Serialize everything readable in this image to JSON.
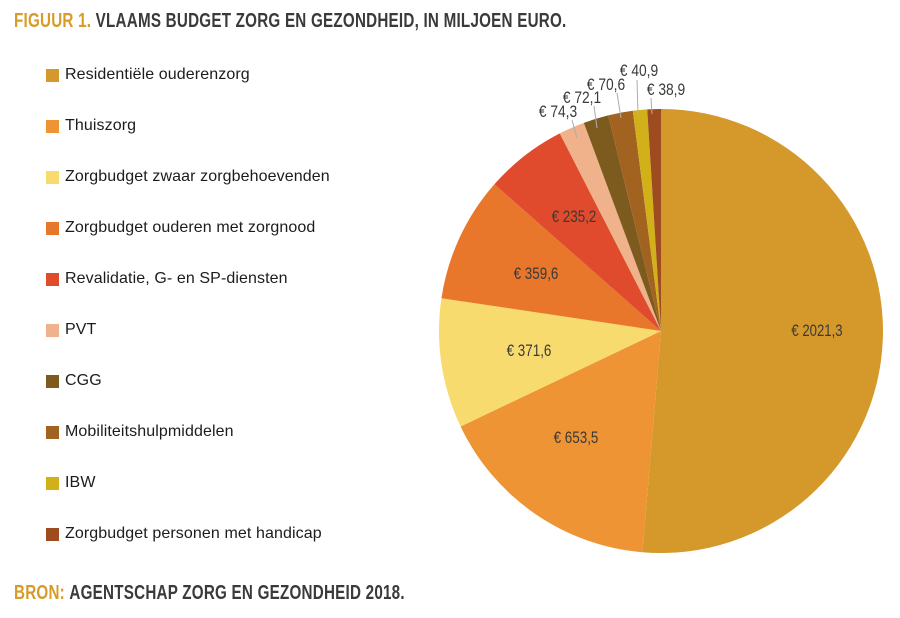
{
  "title": {
    "prefix": "FIGUUR 1.",
    "text": "VLAAMS BUDGET ZORG EN GEZONDHEID, IN MILJOEN EURO."
  },
  "source": {
    "prefix": "BRON:",
    "text": "AGENTSCHAP ZORG EN GEZONDHEID 2018."
  },
  "colors": {
    "accent": "#D89B28",
    "text_dark": "#3A3A3A",
    "leader_line": "#ADADAD"
  },
  "chart_data": {
    "type": "pie",
    "title": "FIGUUR 1. VLAAMS BUDGET ZORG EN GEZONDHEID, IN MILJOEN EURO.",
    "unit": "miljoen euro",
    "start_angle_deg": 0,
    "direction": "clockwise",
    "legend_position": "left",
    "slices": [
      {
        "label": "Residentiële ouderenzorg",
        "value": 2021.3,
        "display": "€ 2021,3",
        "color": "#D5982B"
      },
      {
        "label": "Thuiszorg",
        "value": 653.5,
        "display": "€ 653,5",
        "color": "#EE9434"
      },
      {
        "label": "Zorgbudget zwaar zorgbehoevenden",
        "value": 371.6,
        "display": "€ 371,6",
        "color": "#F8DB6E"
      },
      {
        "label": "Zorgbudget ouderen met zorgnood",
        "value": 359.6,
        "display": "€ 359,6",
        "color": "#E8772B"
      },
      {
        "label": "Revalidatie, G- en SP-diensten",
        "value": 235.2,
        "display": "€ 235,2",
        "color": "#E04B2D"
      },
      {
        "label": "PVT",
        "value": 74.3,
        "display": "€ 74,3",
        "color": "#EFB28A"
      },
      {
        "label": "CGG",
        "value": 72.1,
        "display": "€ 72,1",
        "color": "#7D5A1E"
      },
      {
        "label": "Mobiliteitshulpmiddelen",
        "value": 70.6,
        "display": "€ 70,6",
        "color": "#A1631F"
      },
      {
        "label": "IBW",
        "value": 40.9,
        "display": "€ 40,9",
        "color": "#D2B019"
      },
      {
        "label": "Zorgbudget personen met handicap",
        "value": 38.9,
        "display": "€ 38,9",
        "color": "#9D4B1F"
      }
    ]
  }
}
